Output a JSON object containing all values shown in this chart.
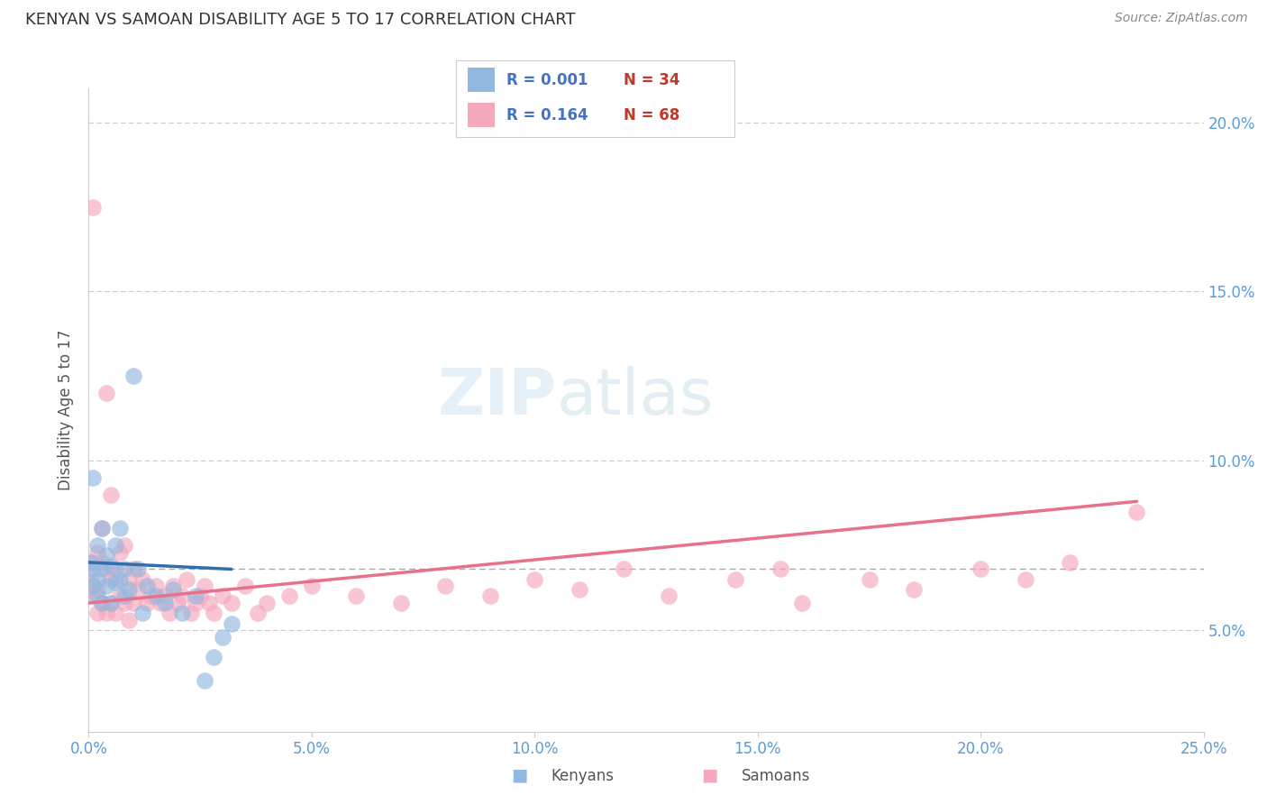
{
  "title": "KENYAN VS SAMOAN DISABILITY AGE 5 TO 17 CORRELATION CHART",
  "source": "Source: ZipAtlas.com",
  "ylabel": "Disability Age 5 to 17",
  "xlim": [
    0.0,
    0.25
  ],
  "ylim": [
    0.02,
    0.21
  ],
  "xticks": [
    0.0,
    0.05,
    0.1,
    0.15,
    0.2,
    0.25
  ],
  "yticks": [
    0.05,
    0.1,
    0.15,
    0.2
  ],
  "ytick_labels": [
    "5.0%",
    "10.0%",
    "15.0%",
    "20.0%"
  ],
  "xtick_labels": [
    "0.0%",
    "5.0%",
    "10.0%",
    "15.0%",
    "20.0%",
    "25.0%"
  ],
  "kenyan_R": "0.001",
  "kenyan_N": 34,
  "samoan_R": "0.164",
  "samoan_N": 68,
  "kenyan_color": "#92b8e0",
  "samoan_color": "#f5a8bc",
  "kenyan_line_color": "#2e6fad",
  "samoan_line_color": "#e8708a",
  "title_color": "#333333",
  "axis_label_color": "#555555",
  "tick_color": "#5b9bd5",
  "source_color": "#888888",
  "legend_R_color": "#4472c4",
  "legend_N_color": "#c0392b",
  "watermark_color": "#d8e8f5",
  "kenyan_x": [
    0.0005,
    0.001,
    0.001,
    0.001,
    0.002,
    0.002,
    0.002,
    0.003,
    0.003,
    0.003,
    0.004,
    0.004,
    0.005,
    0.005,
    0.006,
    0.006,
    0.007,
    0.007,
    0.008,
    0.008,
    0.009,
    0.01,
    0.011,
    0.012,
    0.013,
    0.015,
    0.017,
    0.019,
    0.021,
    0.024,
    0.026,
    0.028,
    0.03,
    0.032
  ],
  "kenyan_y": [
    0.07,
    0.095,
    0.068,
    0.063,
    0.075,
    0.065,
    0.06,
    0.08,
    0.068,
    0.058,
    0.072,
    0.063,
    0.069,
    0.058,
    0.075,
    0.064,
    0.08,
    0.065,
    0.068,
    0.06,
    0.062,
    0.125,
    0.068,
    0.055,
    0.063,
    0.06,
    0.058,
    0.062,
    0.055,
    0.06,
    0.035,
    0.042,
    0.048,
    0.052
  ],
  "samoan_x": [
    0.0005,
    0.001,
    0.001,
    0.001,
    0.002,
    0.002,
    0.002,
    0.003,
    0.003,
    0.003,
    0.004,
    0.004,
    0.004,
    0.005,
    0.005,
    0.005,
    0.006,
    0.006,
    0.007,
    0.007,
    0.008,
    0.008,
    0.009,
    0.009,
    0.01,
    0.01,
    0.011,
    0.012,
    0.013,
    0.014,
    0.015,
    0.016,
    0.017,
    0.018,
    0.019,
    0.02,
    0.021,
    0.022,
    0.023,
    0.024,
    0.025,
    0.026,
    0.027,
    0.028,
    0.03,
    0.032,
    0.035,
    0.038,
    0.04,
    0.045,
    0.05,
    0.06,
    0.07,
    0.08,
    0.09,
    0.1,
    0.11,
    0.12,
    0.13,
    0.145,
    0.155,
    0.16,
    0.175,
    0.185,
    0.2,
    0.21,
    0.22,
    0.235
  ],
  "samoan_y": [
    0.065,
    0.175,
    0.07,
    0.06,
    0.073,
    0.062,
    0.055,
    0.08,
    0.07,
    0.058,
    0.12,
    0.068,
    0.055,
    0.09,
    0.065,
    0.058,
    0.068,
    0.055,
    0.073,
    0.06,
    0.075,
    0.058,
    0.065,
    0.053,
    0.068,
    0.058,
    0.062,
    0.065,
    0.058,
    0.06,
    0.063,
    0.058,
    0.06,
    0.055,
    0.063,
    0.058,
    0.06,
    0.065,
    0.055,
    0.058,
    0.06,
    0.063,
    0.058,
    0.055,
    0.06,
    0.058,
    0.063,
    0.055,
    0.058,
    0.06,
    0.063,
    0.06,
    0.058,
    0.063,
    0.06,
    0.065,
    0.062,
    0.068,
    0.06,
    0.065,
    0.068,
    0.058,
    0.065,
    0.062,
    0.068,
    0.065,
    0.07,
    0.085
  ],
  "kenyan_line_x": [
    0.0,
    0.032
  ],
  "kenyan_line_y": [
    0.07,
    0.068
  ],
  "samoan_line_x": [
    0.0,
    0.235
  ],
  "samoan_line_y": [
    0.058,
    0.088
  ],
  "mean_line_y": 0.068
}
